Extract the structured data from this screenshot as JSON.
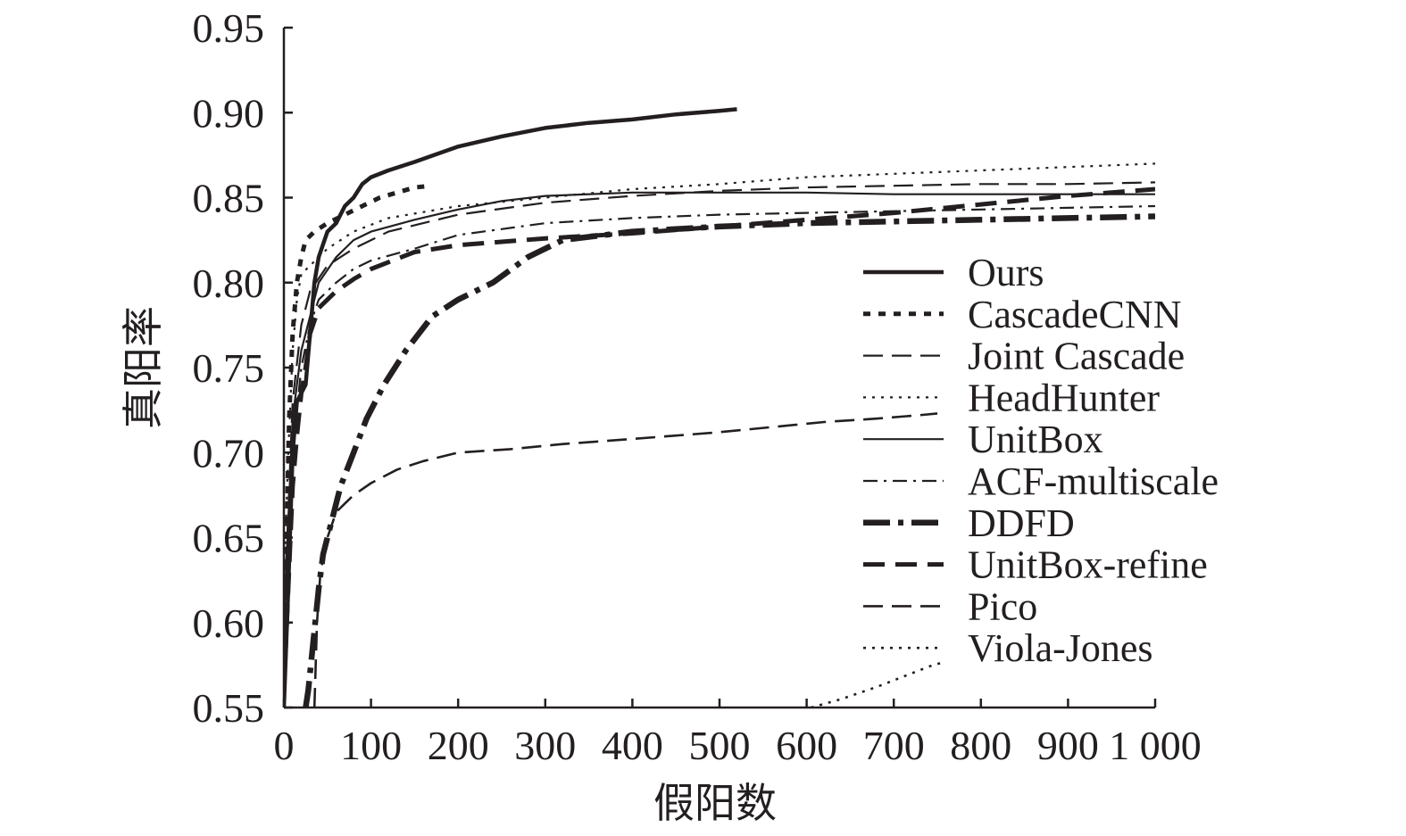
{
  "chart_data": {
    "type": "line",
    "title": "",
    "xlabel": "假阳数",
    "ylabel": "真阳率",
    "xlim": [
      0,
      1000
    ],
    "ylim": [
      0.55,
      0.95
    ],
    "x_ticks": [
      0,
      100,
      200,
      300,
      400,
      500,
      600,
      700,
      800,
      900,
      1000
    ],
    "x_tick_labels": [
      "0",
      "100",
      "200",
      "300",
      "400",
      "500",
      "600",
      "700",
      "800",
      "900",
      "1 000"
    ],
    "y_ticks": [
      0.55,
      0.6,
      0.65,
      0.7,
      0.75,
      0.8,
      0.85,
      0.9,
      0.95
    ],
    "y_tick_labels": [
      "0.55",
      "0.60",
      "0.65",
      "0.70",
      "0.75",
      "0.80",
      "0.85",
      "0.90",
      "0.95"
    ],
    "grid": false,
    "legend_position": "center-right",
    "series": [
      {
        "name": "Ours",
        "style": "solid",
        "width": 4.5,
        "points": [
          [
            0,
            0.55
          ],
          [
            5,
            0.62
          ],
          [
            10,
            0.7
          ],
          [
            15,
            0.73
          ],
          [
            20,
            0.735
          ],
          [
            25,
            0.74
          ],
          [
            30,
            0.77
          ],
          [
            35,
            0.8
          ],
          [
            40,
            0.815
          ],
          [
            50,
            0.83
          ],
          [
            60,
            0.835
          ],
          [
            70,
            0.845
          ],
          [
            80,
            0.85
          ],
          [
            90,
            0.858
          ],
          [
            100,
            0.862
          ],
          [
            120,
            0.866
          ],
          [
            150,
            0.871
          ],
          [
            200,
            0.88
          ],
          [
            250,
            0.886
          ],
          [
            300,
            0.891
          ],
          [
            350,
            0.894
          ],
          [
            400,
            0.896
          ],
          [
            450,
            0.899
          ],
          [
            500,
            0.901
          ],
          [
            520,
            0.902
          ]
        ]
      },
      {
        "name": "CascadeCNN",
        "style": "dotted-heavy",
        "width": 5,
        "points": [
          [
            0,
            0.56
          ],
          [
            3,
            0.65
          ],
          [
            6,
            0.72
          ],
          [
            10,
            0.77
          ],
          [
            15,
            0.8
          ],
          [
            20,
            0.815
          ],
          [
            25,
            0.825
          ],
          [
            35,
            0.83
          ],
          [
            50,
            0.835
          ],
          [
            70,
            0.84
          ],
          [
            90,
            0.845
          ],
          [
            110,
            0.85
          ],
          [
            130,
            0.853
          ],
          [
            150,
            0.856
          ],
          [
            170,
            0.857
          ]
        ]
      },
      {
        "name": "Joint Cascade",
        "style": "dashed",
        "width": 2.2,
        "points": [
          [
            0,
            0.6
          ],
          [
            10,
            0.73
          ],
          [
            20,
            0.775
          ],
          [
            30,
            0.795
          ],
          [
            50,
            0.81
          ],
          [
            80,
            0.82
          ],
          [
            120,
            0.83
          ],
          [
            200,
            0.84
          ],
          [
            300,
            0.847
          ],
          [
            400,
            0.851
          ],
          [
            500,
            0.854
          ],
          [
            600,
            0.856
          ],
          [
            700,
            0.857
          ],
          [
            800,
            0.858
          ],
          [
            900,
            0.858
          ],
          [
            1000,
            0.859
          ]
        ]
      },
      {
        "name": "HeadHunter",
        "style": "dotted",
        "width": 2.2,
        "points": [
          [
            0,
            0.62
          ],
          [
            5,
            0.7
          ],
          [
            10,
            0.76
          ],
          [
            15,
            0.79
          ],
          [
            20,
            0.805
          ],
          [
            30,
            0.81
          ],
          [
            50,
            0.82
          ],
          [
            80,
            0.83
          ],
          [
            120,
            0.838
          ],
          [
            200,
            0.845
          ],
          [
            300,
            0.85
          ],
          [
            400,
            0.855
          ],
          [
            500,
            0.858
          ],
          [
            600,
            0.862
          ],
          [
            700,
            0.864
          ],
          [
            800,
            0.866
          ],
          [
            900,
            0.868
          ],
          [
            1000,
            0.87
          ]
        ]
      },
      {
        "name": "UnitBox",
        "style": "solid",
        "width": 2.2,
        "points": [
          [
            0,
            0.6
          ],
          [
            10,
            0.72
          ],
          [
            20,
            0.76
          ],
          [
            30,
            0.78
          ],
          [
            40,
            0.8
          ],
          [
            60,
            0.815
          ],
          [
            80,
            0.825
          ],
          [
            100,
            0.83
          ],
          [
            150,
            0.837
          ],
          [
            200,
            0.843
          ],
          [
            250,
            0.848
          ],
          [
            300,
            0.851
          ],
          [
            400,
            0.853
          ],
          [
            500,
            0.853
          ],
          [
            600,
            0.853
          ],
          [
            700,
            0.852
          ],
          [
            800,
            0.852
          ],
          [
            900,
            0.852
          ],
          [
            1000,
            0.852
          ]
        ]
      },
      {
        "name": "ACF-multiscale",
        "style": "dashdot",
        "width": 2.2,
        "points": [
          [
            0,
            0.58
          ],
          [
            10,
            0.7
          ],
          [
            20,
            0.75
          ],
          [
            30,
            0.775
          ],
          [
            40,
            0.79
          ],
          [
            60,
            0.8
          ],
          [
            80,
            0.808
          ],
          [
            100,
            0.813
          ],
          [
            150,
            0.82
          ],
          [
            200,
            0.828
          ],
          [
            300,
            0.835
          ],
          [
            400,
            0.838
          ],
          [
            500,
            0.84
          ],
          [
            600,
            0.841
          ],
          [
            700,
            0.842
          ],
          [
            800,
            0.843
          ],
          [
            900,
            0.844
          ],
          [
            1000,
            0.845
          ]
        ]
      },
      {
        "name": "DDFD",
        "style": "dashdot-heavy",
        "width": 6.5,
        "points": [
          [
            25,
            0.55
          ],
          [
            28,
            0.56
          ],
          [
            32,
            0.58
          ],
          [
            36,
            0.6
          ],
          [
            40,
            0.62
          ],
          [
            45,
            0.64
          ],
          [
            55,
            0.66
          ],
          [
            65,
            0.68
          ],
          [
            80,
            0.7
          ],
          [
            95,
            0.72
          ],
          [
            115,
            0.74
          ],
          [
            140,
            0.76
          ],
          [
            170,
            0.78
          ],
          [
            200,
            0.79
          ],
          [
            240,
            0.8
          ],
          [
            280,
            0.815
          ],
          [
            320,
            0.825
          ],
          [
            400,
            0.83
          ],
          [
            500,
            0.833
          ],
          [
            600,
            0.835
          ],
          [
            700,
            0.836
          ],
          [
            800,
            0.837
          ],
          [
            900,
            0.838
          ],
          [
            1000,
            0.839
          ]
        ]
      },
      {
        "name": "UnitBox-refine",
        "style": "dashed-heavy",
        "width": 5,
        "points": [
          [
            0,
            0.56
          ],
          [
            5,
            0.62
          ],
          [
            10,
            0.68
          ],
          [
            15,
            0.71
          ],
          [
            20,
            0.735
          ],
          [
            25,
            0.75
          ],
          [
            30,
            0.77
          ],
          [
            40,
            0.785
          ],
          [
            60,
            0.795
          ],
          [
            80,
            0.802
          ],
          [
            100,
            0.808
          ],
          [
            150,
            0.818
          ],
          [
            200,
            0.822
          ],
          [
            300,
            0.826
          ],
          [
            400,
            0.829
          ],
          [
            500,
            0.833
          ],
          [
            600,
            0.837
          ],
          [
            700,
            0.841
          ],
          [
            800,
            0.846
          ],
          [
            900,
            0.851
          ],
          [
            1000,
            0.855
          ]
        ]
      },
      {
        "name": "Pico",
        "style": "dashed",
        "width": 2.6,
        "points": [
          [
            35,
            0.55
          ],
          [
            38,
            0.6
          ],
          [
            42,
            0.63
          ],
          [
            50,
            0.65
          ],
          [
            60,
            0.665
          ],
          [
            80,
            0.675
          ],
          [
            100,
            0.682
          ],
          [
            130,
            0.69
          ],
          [
            160,
            0.695
          ],
          [
            200,
            0.7
          ],
          [
            260,
            0.702
          ],
          [
            320,
            0.705
          ],
          [
            400,
            0.708
          ],
          [
            450,
            0.71
          ],
          [
            500,
            0.712
          ],
          [
            560,
            0.715
          ],
          [
            620,
            0.718
          ],
          [
            680,
            0.72
          ],
          [
            730,
            0.722
          ],
          [
            750,
            0.723
          ]
        ]
      },
      {
        "name": "Viola-Jones",
        "style": "dotted",
        "width": 2.6,
        "points": [
          [
            605,
            0.55
          ],
          [
            640,
            0.555
          ],
          [
            680,
            0.562
          ],
          [
            720,
            0.57
          ],
          [
            745,
            0.575
          ],
          [
            760,
            0.577
          ]
        ]
      }
    ]
  }
}
